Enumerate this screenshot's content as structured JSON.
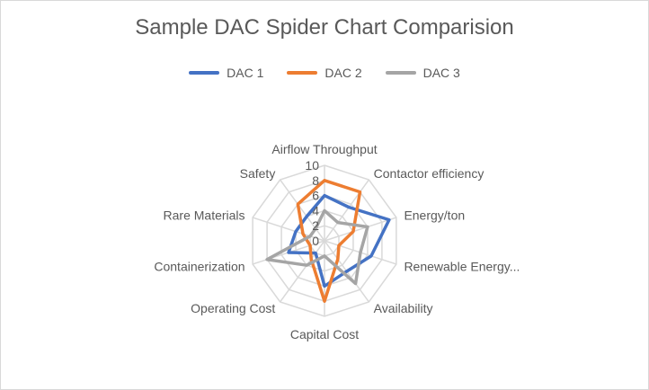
{
  "chart_data": {
    "type": "radar",
    "title": "Sample DAC Spider Chart Comparision",
    "axes": [
      "Airflow Throughput",
      "Contactor efficiency",
      "Energy/ton",
      "Renewable Energy...",
      "Availability",
      "Capital Cost",
      "Operating Cost",
      "Containerization",
      "Rare Materials",
      "Safety"
    ],
    "rlim": [
      0,
      10
    ],
    "ticks": [
      0,
      2,
      4,
      6,
      8,
      10
    ],
    "grid": true,
    "legend_position": "top",
    "series": [
      {
        "name": "DAC 1",
        "color": "#4472c4",
        "values": [
          6,
          5.5,
          9,
          6.5,
          5,
          6,
          2,
          5,
          4,
          4
        ]
      },
      {
        "name": "DAC 2",
        "color": "#ed7d31",
        "values": [
          8,
          8,
          4,
          2,
          3,
          8,
          3,
          2,
          3,
          6
        ]
      },
      {
        "name": "DAC 3",
        "color": "#a5a5a5",
        "values": [
          4,
          3,
          6,
          5,
          7,
          2,
          4,
          8,
          2,
          2
        ]
      }
    ]
  }
}
